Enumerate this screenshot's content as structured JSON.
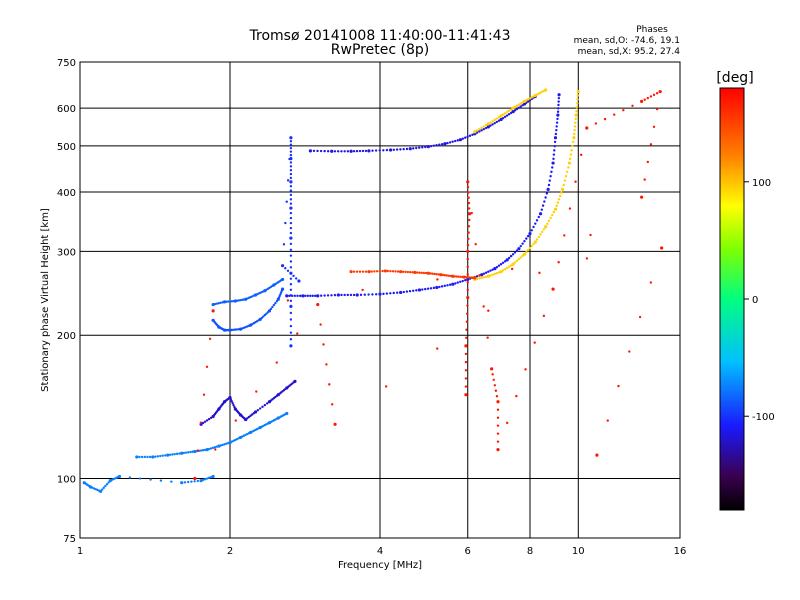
{
  "chart_data": {
    "type": "scatter",
    "title": "Tromsø 20141008 11:40:00-11:41:43",
    "subtitle": "RwPretec (8p)",
    "xlabel": "Frequency [MHz]",
    "ylabel": "Stationary phase Virtual Height [km]",
    "xscale": "log",
    "yscale": "log",
    "xlim": [
      1,
      16
    ],
    "ylim": [
      75,
      750
    ],
    "xticks": [
      1,
      2,
      4,
      6,
      8,
      10,
      16
    ],
    "yticks": [
      75,
      100,
      200,
      300,
      400,
      500,
      600,
      750
    ],
    "grid": true,
    "stats": {
      "heading": "Phases",
      "line_o": "mean, sd,O: -74.6, 19.1",
      "line_x": "mean, sd,X:  95.2, 27.4"
    },
    "colorbar": {
      "label": "[deg]",
      "ticks": [
        100,
        0,
        -100
      ],
      "range": [
        -180,
        180
      ],
      "position": "right"
    },
    "series": [
      {
        "phase": -110,
        "points": [
          [
            2.6,
            242
          ],
          [
            2.8,
            242
          ],
          [
            3.0,
            242
          ],
          [
            3.3,
            243
          ],
          [
            3.6,
            243
          ],
          [
            4.0,
            244
          ],
          [
            4.4,
            246
          ],
          [
            4.8,
            249
          ],
          [
            5.2,
            252
          ],
          [
            5.6,
            256
          ],
          [
            6.0,
            262
          ],
          [
            6.4,
            268
          ],
          [
            6.8,
            276
          ],
          [
            7.2,
            288
          ],
          [
            7.6,
            304
          ],
          [
            8.0,
            327
          ],
          [
            8.4,
            360
          ],
          [
            8.7,
            405
          ],
          [
            8.9,
            460
          ],
          [
            9.0,
            520
          ],
          [
            9.1,
            580
          ],
          [
            9.15,
            640
          ]
        ]
      },
      {
        "phase": 95,
        "points": [
          [
            6.2,
            262
          ],
          [
            6.6,
            266
          ],
          [
            7.0,
            272
          ],
          [
            7.4,
            282
          ],
          [
            7.8,
            296
          ],
          [
            8.2,
            314
          ],
          [
            8.6,
            338
          ],
          [
            9.0,
            368
          ],
          [
            9.3,
            405
          ],
          [
            9.6,
            460
          ],
          [
            9.8,
            520
          ],
          [
            9.9,
            580
          ],
          [
            10.0,
            650
          ]
        ]
      },
      {
        "phase": -115,
        "points": [
          [
            2.9,
            488
          ],
          [
            3.2,
            487
          ],
          [
            3.5,
            487
          ],
          [
            3.8,
            488
          ],
          [
            4.2,
            490
          ],
          [
            4.6,
            493
          ],
          [
            5.0,
            498
          ],
          [
            5.4,
            505
          ],
          [
            5.8,
            515
          ],
          [
            6.2,
            530
          ],
          [
            6.6,
            548
          ],
          [
            7.0,
            568
          ],
          [
            7.4,
            590
          ],
          [
            7.8,
            612
          ],
          [
            8.2,
            635
          ]
        ]
      },
      {
        "phase": 95,
        "points": [
          [
            6.2,
            535
          ],
          [
            6.6,
            556
          ],
          [
            7.0,
            578
          ],
          [
            7.4,
            600
          ],
          [
            7.8,
            620
          ],
          [
            8.2,
            638
          ],
          [
            8.6,
            655
          ]
        ]
      },
      {
        "phase": 155,
        "points": [
          [
            3.5,
            272
          ],
          [
            3.8,
            272
          ],
          [
            4.1,
            273
          ],
          [
            4.4,
            272
          ],
          [
            4.7,
            271
          ],
          [
            5.0,
            270
          ],
          [
            5.3,
            268
          ],
          [
            5.6,
            266
          ],
          [
            5.9,
            265
          ],
          [
            6.2,
            264
          ]
        ]
      },
      {
        "phase": -90,
        "points": [
          [
            1.85,
            215
          ],
          [
            1.9,
            208
          ],
          [
            1.95,
            205
          ],
          [
            2.0,
            205
          ],
          [
            2.1,
            206
          ],
          [
            2.2,
            210
          ],
          [
            2.3,
            216
          ],
          [
            2.4,
            225
          ],
          [
            2.5,
            238
          ],
          [
            2.55,
            250
          ]
        ]
      },
      {
        "phase": -85,
        "points": [
          [
            1.85,
            232
          ],
          [
            1.95,
            235
          ],
          [
            2.05,
            236
          ],
          [
            2.15,
            238
          ],
          [
            2.25,
            243
          ],
          [
            2.35,
            248
          ],
          [
            2.45,
            255
          ],
          [
            2.55,
            262
          ]
        ]
      },
      {
        "phase": -75,
        "points": [
          [
            1.3,
            111
          ],
          [
            1.4,
            111
          ],
          [
            1.5,
            112
          ],
          [
            1.6,
            113
          ],
          [
            1.7,
            114
          ],
          [
            1.8,
            115
          ],
          [
            1.9,
            117
          ],
          [
            2.0,
            119
          ],
          [
            2.1,
            122
          ],
          [
            2.2,
            125
          ],
          [
            2.3,
            128
          ],
          [
            2.4,
            131
          ],
          [
            2.5,
            134
          ],
          [
            2.6,
            137
          ]
        ]
      },
      {
        "phase": -120,
        "points": [
          [
            1.75,
            130
          ],
          [
            1.85,
            135
          ],
          [
            1.9,
            140
          ],
          [
            1.95,
            145
          ],
          [
            2.0,
            148
          ],
          [
            2.05,
            140
          ],
          [
            2.1,
            136
          ],
          [
            2.15,
            133
          ],
          [
            2.25,
            138
          ],
          [
            2.4,
            145
          ],
          [
            2.5,
            150
          ],
          [
            2.6,
            155
          ],
          [
            2.7,
            160
          ]
        ]
      },
      {
        "phase": -75,
        "points": [
          [
            1.02,
            98
          ],
          [
            1.05,
            96
          ],
          [
            1.1,
            94
          ],
          [
            1.15,
            99
          ],
          [
            1.2,
            101
          ],
          [
            1.6,
            98
          ],
          [
            1.75,
            99
          ],
          [
            1.85,
            101
          ]
        ]
      },
      {
        "phase": -100,
        "points": [
          [
            2.65,
            190
          ],
          [
            2.65,
            230
          ],
          [
            2.65,
            270
          ],
          [
            2.65,
            320
          ],
          [
            2.65,
            370
          ],
          [
            2.65,
            420
          ],
          [
            2.65,
            470
          ],
          [
            2.65,
            520
          ],
          [
            2.55,
            280
          ],
          [
            2.75,
            260
          ]
        ]
      },
      {
        "phase": 170,
        "points": [
          [
            5.95,
            150
          ],
          [
            5.95,
            190
          ],
          [
            6.0,
            240
          ],
          [
            6.0,
            300
          ],
          [
            6.05,
            360
          ],
          [
            6.0,
            420
          ],
          [
            6.7,
            170
          ],
          [
            6.9,
            145
          ],
          [
            6.9,
            115
          ],
          [
            8.9,
            250
          ],
          [
            10.4,
            545
          ],
          [
            13.4,
            620
          ],
          [
            14.6,
            650
          ],
          [
            13.4,
            390
          ],
          [
            3.25,
            130
          ],
          [
            3.0,
            232
          ],
          [
            1.7,
            100
          ],
          [
            1.85,
            225
          ],
          [
            14.7,
            305
          ],
          [
            10.9,
            112
          ]
        ]
      }
    ]
  }
}
